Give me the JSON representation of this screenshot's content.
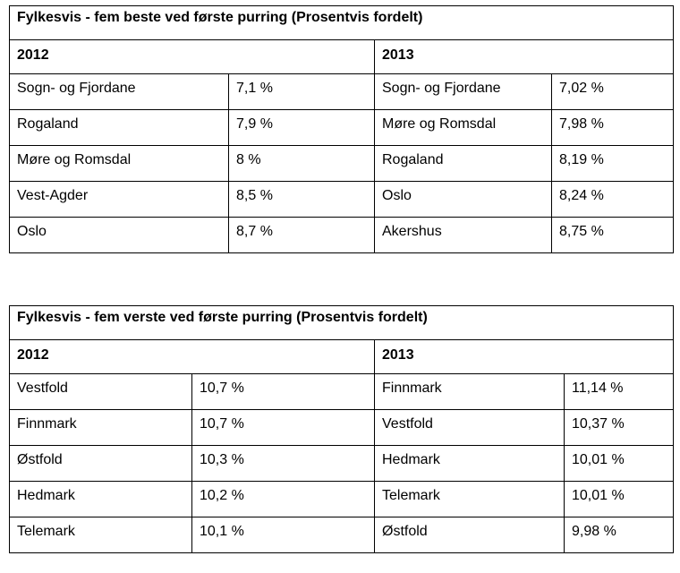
{
  "tables": [
    {
      "title": "Fylkesvis - fem beste ved første purring (Prosentvis fordelt)",
      "year_left": "2012",
      "year_right": "2013",
      "rows": [
        {
          "county_2012": "Sogn- og Fjordane",
          "value_2012": "7,1 %",
          "county_2013": "Sogn- og Fjordane",
          "value_2013": "7,02 %"
        },
        {
          "county_2012": "Rogaland",
          "value_2012": "7,9 %",
          "county_2013": "Møre og Romsdal",
          "value_2013": "7,98 %"
        },
        {
          "county_2012": "Møre og Romsdal",
          "value_2012": "8 %",
          "county_2013": "Rogaland",
          "value_2013": "8,19 %"
        },
        {
          "county_2012": "Vest-Agder",
          "value_2012": "8,5 %",
          "county_2013": "Oslo",
          "value_2013": "8,24 %"
        },
        {
          "county_2012": "Oslo",
          "value_2012": "8,7 %",
          "county_2013": "Akershus",
          "value_2013": "8,75 %"
        }
      ]
    },
    {
      "title": "Fylkesvis - fem verste ved første purring (Prosentvis fordelt)",
      "year_left": "2012",
      "year_right": "2013",
      "rows": [
        {
          "county_2012": "Vestfold",
          "value_2012": "10,7 %",
          "county_2013": "Finnmark",
          "value_2013": "11,14 %"
        },
        {
          "county_2012": "Finnmark",
          "value_2012": "10,7 %",
          "county_2013": "Vestfold",
          "value_2013": "10,37 %"
        },
        {
          "county_2012": "Østfold",
          "value_2012": "10,3 %",
          "county_2013": "Hedmark",
          "value_2013": "10,01 %"
        },
        {
          "county_2012": "Hedmark",
          "value_2012": "10,2 %",
          "county_2013": "Telemark",
          "value_2013": "10,01 %"
        },
        {
          "county_2012": "Telemark",
          "value_2012": "10,1 %",
          "county_2013": "Østfold",
          "value_2013": "9,98 %"
        }
      ]
    }
  ]
}
